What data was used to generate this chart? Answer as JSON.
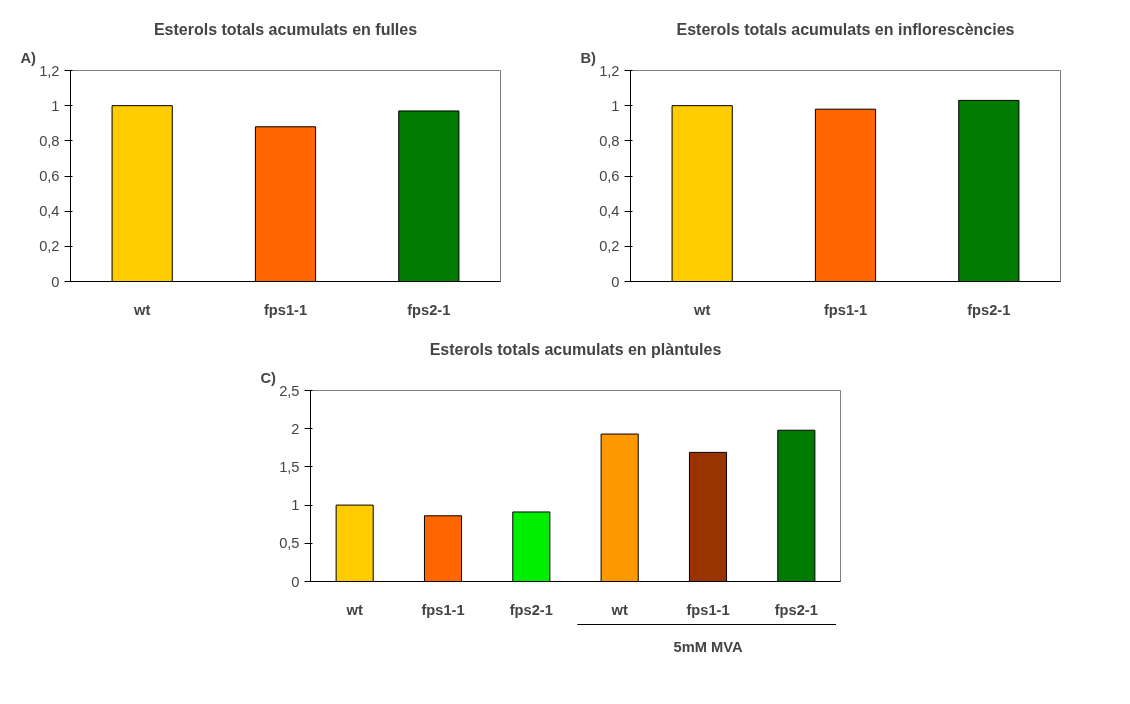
{
  "chart_data": [
    {
      "type": "bar",
      "title": "Esterols totals acumulats en fulles",
      "annotations": [
        "A)"
      ],
      "categories": [
        "wt",
        "fps1-1",
        "fps2-1"
      ],
      "values": [
        1.0,
        0.88,
        0.97
      ],
      "colors": [
        "#ffcc00",
        "#ff6600",
        "#007a00"
      ],
      "ylim": [
        0,
        1.2
      ],
      "yticks": [
        0,
        {
          "value": 0.2,
          "label": "0,2"
        },
        {
          "value": 0.4,
          "label": "0,4"
        },
        {
          "value": 0.6,
          "label": "0,6"
        },
        {
          "value": 0.8,
          "label": "0,8"
        },
        1,
        {
          "value": 1.2,
          "label": "1,2"
        }
      ],
      "grid": false
    },
    {
      "type": "bar",
      "title": "Esterols totals acumulats en inflorescències",
      "annotations": [
        "B)"
      ],
      "categories": [
        "wt",
        "fps1-1",
        "fps2-1"
      ],
      "values": [
        1.0,
        0.98,
        1.03
      ],
      "colors": [
        "#ffcc00",
        "#ff6600",
        "#007a00"
      ],
      "ylim": [
        0,
        1.2
      ],
      "yticks": [
        0,
        {
          "value": 0.2,
          "label": "0,2"
        },
        {
          "value": 0.4,
          "label": "0,4"
        },
        {
          "value": 0.6,
          "label": "0,6"
        },
        {
          "value": 0.8,
          "label": "0,8"
        },
        1,
        {
          "value": 1.2,
          "label": "1,2"
        }
      ],
      "grid": false
    },
    {
      "type": "bar",
      "title": "Esterols totals acumulats en plàntules",
      "annotations": [
        "C)",
        "5mM MVA"
      ],
      "categories": [
        "wt",
        "fps1-1",
        "fps2-1",
        "wt",
        "fps1-1",
        "fps2-1"
      ],
      "values": [
        1.0,
        0.86,
        0.91,
        1.93,
        1.69,
        1.98
      ],
      "colors": [
        "#ffcc00",
        "#ff6600",
        "#00ee00",
        "#ff9900",
        "#993300",
        "#007a00"
      ],
      "ylim": [
        0,
        2.5
      ],
      "yticks": [
        0,
        {
          "value": 0.5,
          "label": "0,5"
        },
        1,
        {
          "value": 1.5,
          "label": "1,5"
        },
        2,
        {
          "value": 2.5,
          "label": "2,5"
        }
      ],
      "grid": false
    }
  ]
}
